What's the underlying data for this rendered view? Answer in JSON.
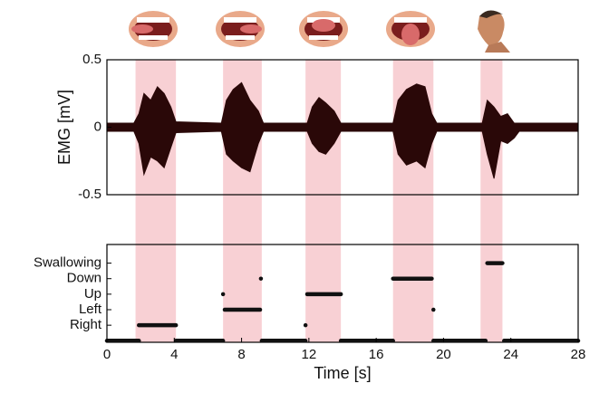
{
  "chart_data": [
    {
      "type": "area",
      "ylabel": "EMG [mV]",
      "xlim": [
        0,
        28
      ],
      "ylim": [
        -0.5,
        0.5
      ],
      "yticks": [
        -0.5,
        0,
        0.5
      ],
      "color": "#2a0808",
      "highlight_color": "#f8d0d4",
      "highlights": [
        {
          "start": 1.7,
          "end": 4.1
        },
        {
          "start": 6.9,
          "end": 9.2
        },
        {
          "start": 11.8,
          "end": 13.9
        },
        {
          "start": 17.0,
          "end": 19.4
        },
        {
          "start": 22.2,
          "end": 23.5
        }
      ],
      "x": [
        0,
        1.6,
        1.9,
        2.2,
        2.6,
        3.0,
        3.4,
        3.8,
        4.1,
        6.8,
        7.1,
        7.5,
        8.0,
        8.5,
        9.0,
        9.3,
        11.9,
        12.2,
        12.6,
        13.0,
        13.5,
        13.9,
        17.0,
        17.3,
        17.8,
        18.4,
        18.9,
        19.3,
        19.6,
        22.3,
        22.6,
        23.0,
        23.4,
        23.8,
        24.2,
        24.5,
        28
      ],
      "upper": [
        0.03,
        0.03,
        0.1,
        0.25,
        0.2,
        0.3,
        0.25,
        0.15,
        0.04,
        0.03,
        0.2,
        0.28,
        0.33,
        0.2,
        0.12,
        0.03,
        0.03,
        0.15,
        0.22,
        0.18,
        0.12,
        0.03,
        0.03,
        0.2,
        0.28,
        0.32,
        0.3,
        0.1,
        0.03,
        0.03,
        0.2,
        0.15,
        0.08,
        0.1,
        0.03,
        0.03,
        0.03
      ],
      "lower": [
        -0.03,
        -0.03,
        -0.12,
        -0.35,
        -0.22,
        -0.25,
        -0.3,
        -0.15,
        -0.04,
        -0.03,
        -0.2,
        -0.25,
        -0.3,
        -0.33,
        -0.12,
        -0.03,
        -0.03,
        -0.12,
        -0.18,
        -0.2,
        -0.12,
        -0.03,
        -0.03,
        -0.2,
        -0.28,
        -0.25,
        -0.3,
        -0.12,
        -0.03,
        -0.03,
        -0.2,
        -0.38,
        -0.1,
        -0.12,
        -0.08,
        -0.03,
        -0.03
      ]
    },
    {
      "type": "step",
      "xlabel": "Time [s]",
      "xlim": [
        0,
        28
      ],
      "xticks": [
        0,
        4,
        8,
        12,
        16,
        20,
        24,
        28
      ],
      "ylim": [
        -0.1,
        6.2
      ],
      "yticks": [
        {
          "value": 1,
          "label": "Right"
        },
        {
          "value": 2,
          "label": "Left"
        },
        {
          "value": 3,
          "label": "Up"
        },
        {
          "value": 4,
          "label": "Down"
        },
        {
          "value": 5,
          "label": "Swallowing"
        }
      ],
      "color": "#111111",
      "segments": [
        {
          "start": 0,
          "end": 1.9,
          "class": 0
        },
        {
          "start": 1.9,
          "end": 4.1,
          "class": 1
        },
        {
          "start": 4.1,
          "end": 6.9,
          "class": 0
        },
        {
          "start": 6.9,
          "end": 6.9,
          "class": 3
        },
        {
          "start": 7.0,
          "end": 9.1,
          "class": 2
        },
        {
          "start": 9.15,
          "end": 9.15,
          "class": 4
        },
        {
          "start": 9.2,
          "end": 11.8,
          "class": 0
        },
        {
          "start": 11.8,
          "end": 11.8,
          "class": 1
        },
        {
          "start": 11.9,
          "end": 13.9,
          "class": 3
        },
        {
          "start": 13.9,
          "end": 17.0,
          "class": 0
        },
        {
          "start": 17.0,
          "end": 19.3,
          "class": 4
        },
        {
          "start": 19.4,
          "end": 19.4,
          "class": 2
        },
        {
          "start": 19.4,
          "end": 22.5,
          "class": 0
        },
        {
          "start": 22.6,
          "end": 23.5,
          "class": 5
        },
        {
          "start": 23.6,
          "end": 28,
          "class": 0
        }
      ]
    }
  ]
}
